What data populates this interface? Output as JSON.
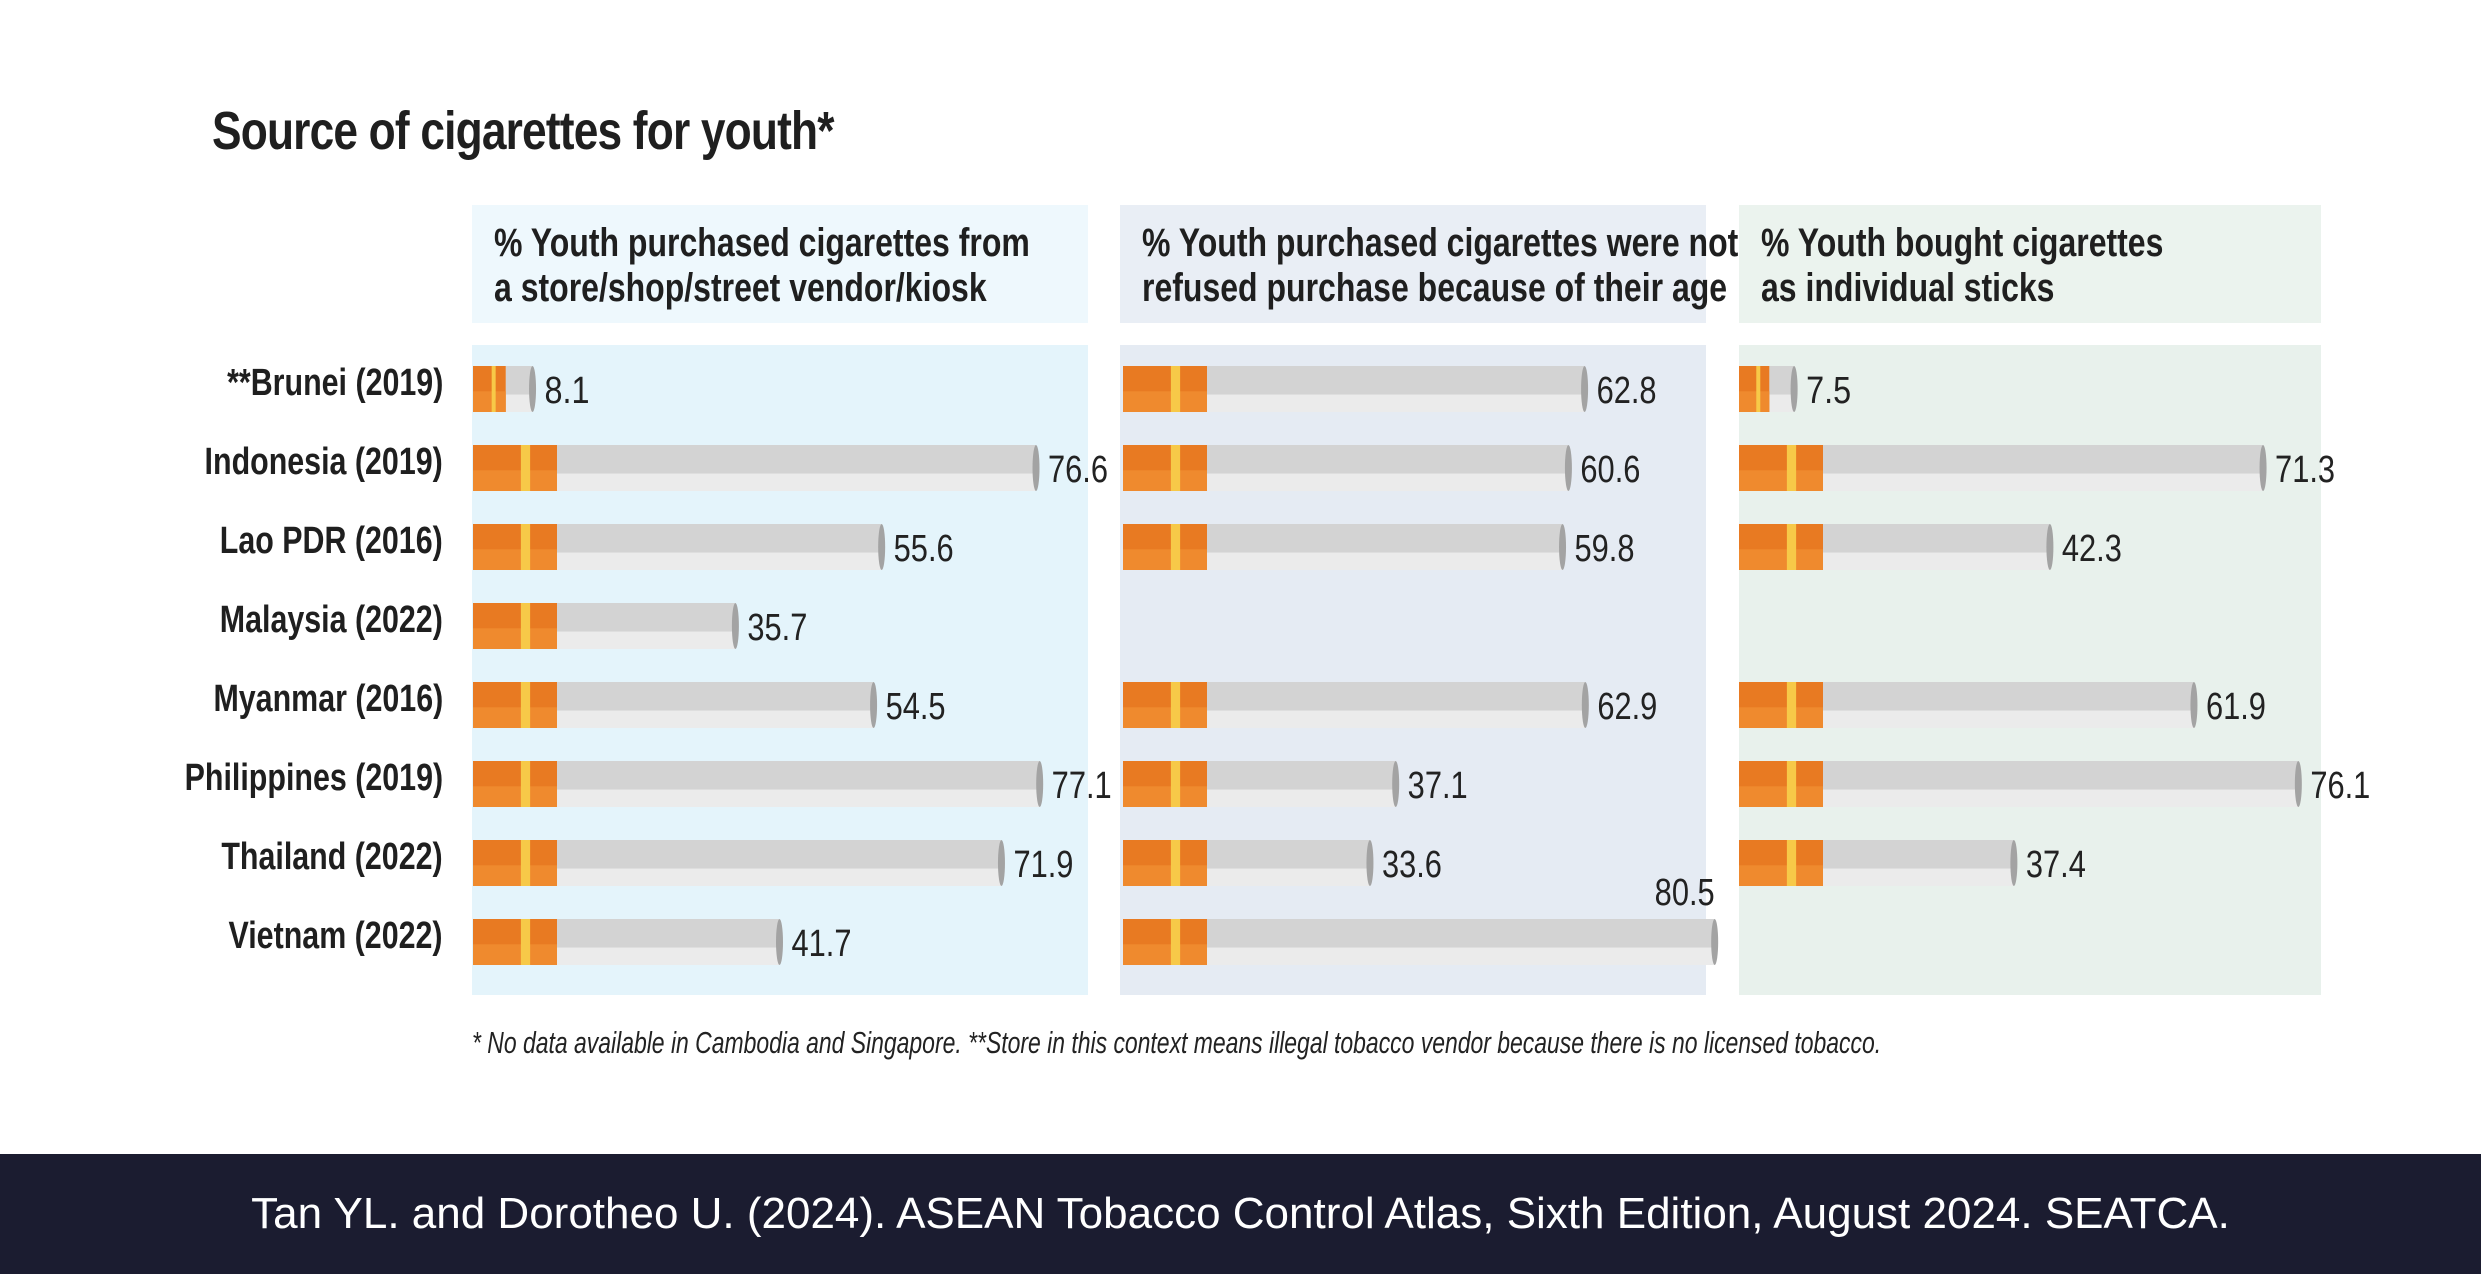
{
  "title": "Source of cigarettes for youth*",
  "footnote": "* No data available in Cambodia and Singapore. **Store in this context means illegal tobacco vendor because there is no licensed tobacco.",
  "source": "Tan YL. and Dorotheo U. (2024). ASEAN Tobacco Control Atlas, Sixth Edition, August 2024. SEATCA.",
  "colors": {
    "panel1": "#e4f4fb",
    "panel1_head": "#eef8fd",
    "panel2": "#e5ebf3",
    "panel2_head": "#e9eef5",
    "panel3": "#e8f1ec",
    "panel3_head": "#ebf3ee",
    "filter": "#e87a22",
    "filter_band": "#f7c948",
    "paper": "#d3d3d3",
    "paper_light": "#ebebeb",
    "ash": "#a3a3a3"
  },
  "chart_data": {
    "type": "bar",
    "orientation": "horizontal",
    "categories": [
      "**Brunei (2019)",
      "Indonesia (2019)",
      "Lao PDR (2016)",
      "Malaysia (2022)",
      "Myanmar (2016)",
      "Philippines (2019)",
      "Thailand (2022)",
      "Vietnam (2022)"
    ],
    "series": [
      {
        "name": "% Youth purchased cigarettes from a store/shop/street vendor/kiosk",
        "name_lines": [
          "% Youth purchased cigarettes from",
          "a store/shop/street vendor/kiosk"
        ],
        "values": [
          8.1,
          76.6,
          55.6,
          35.7,
          54.5,
          77.1,
          71.9,
          41.7
        ],
        "labels": [
          "8.1",
          "76.6",
          "55.6",
          "35.7",
          "54.5",
          "77.1",
          "71.9",
          "41.7"
        ]
      },
      {
        "name": "% Youth purchased cigarettes were not refused purchase because of their age",
        "name_lines": [
          "% Youth purchased cigarettes were not",
          "refused purchase because of their age"
        ],
        "values": [
          62.8,
          60.6,
          59.8,
          null,
          62.9,
          37.1,
          33.6,
          80.5
        ],
        "labels": [
          "62.8",
          "60.6",
          "59.8",
          "",
          "62.9",
          "37.1",
          "33.6",
          "80.5"
        ]
      },
      {
        "name": "% Youth bought cigarettes as individual sticks",
        "name_lines": [
          "% Youth bought cigarettes",
          "as individual sticks"
        ],
        "values": [
          7.5,
          71.3,
          42.3,
          null,
          61.9,
          76.1,
          37.4,
          null
        ],
        "labels": [
          "7.5",
          "71.3",
          "42.3",
          "",
          "61.9",
          "76.1",
          "37.4",
          ""
        ]
      }
    ],
    "xlim": [
      0,
      100
    ],
    "grid": false,
    "legend": "none"
  }
}
